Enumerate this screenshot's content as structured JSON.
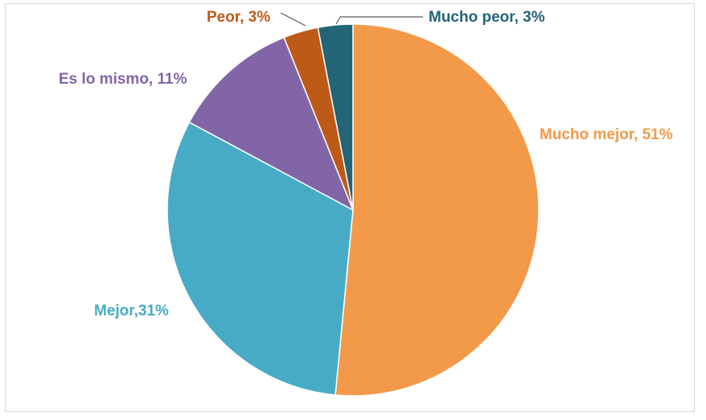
{
  "chart_data": {
    "type": "pie",
    "slices": [
      {
        "label": "Mucho mejor, 51%",
        "value": 51,
        "color": "#F2994A",
        "label_color": "#F2994A"
      },
      {
        "label": "Mejor,31%",
        "value": 31,
        "color": "#47ABC6",
        "label_color": "#47ABC6"
      },
      {
        "label": "Es lo mismo, 11%",
        "value": 11,
        "color": "#8165A6",
        "label_color": "#8165A6"
      },
      {
        "label": "Peor, 3%",
        "value": 3,
        "color": "#BE5A17",
        "label_color": "#BE5A17"
      },
      {
        "label": "Mucho peor, 3%",
        "value": 3,
        "color": "#236477",
        "label_color": "#236477"
      }
    ]
  }
}
